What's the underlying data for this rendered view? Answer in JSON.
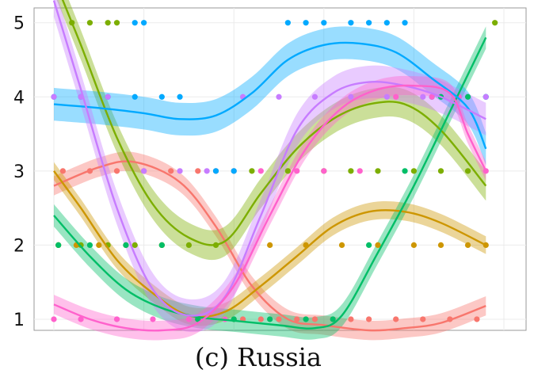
{
  "chart_data": {
    "type": "scatter",
    "title": "",
    "xlabel": "",
    "ylabel": "",
    "caption": "(c) Russia",
    "xlim": [
      0,
      100
    ],
    "ylim": [
      0.85,
      5.2
    ],
    "yticks": [
      1,
      2,
      3,
      4,
      5
    ],
    "grid": true,
    "legend": "none",
    "series": [
      {
        "color": "#F8766D",
        "points": [
          [
            2,
            3
          ],
          [
            8,
            3
          ],
          [
            14,
            3
          ],
          [
            20,
            3
          ],
          [
            26,
            3
          ],
          [
            32,
            3
          ],
          [
            36,
            3
          ],
          [
            40,
            3
          ],
          [
            42,
            1
          ],
          [
            46,
            1
          ],
          [
            50,
            1
          ],
          [
            54,
            1
          ],
          [
            58,
            1
          ],
          [
            62,
            1
          ],
          [
            66,
            1
          ],
          [
            70,
            1
          ],
          [
            76,
            1
          ],
          [
            82,
            1
          ],
          [
            88,
            1
          ],
          [
            94,
            1
          ]
        ],
        "smooth": [
          [
            0,
            2.8
          ],
          [
            10,
            3.05
          ],
          [
            18,
            3.12
          ],
          [
            28,
            2.85
          ],
          [
            36,
            2.25
          ],
          [
            44,
            1.45
          ],
          [
            52,
            1.0
          ],
          [
            60,
            0.92
          ],
          [
            70,
            0.85
          ],
          [
            78,
            0.88
          ],
          [
            86,
            0.95
          ],
          [
            96,
            1.18
          ]
        ],
        "band": 0.13
      },
      {
        "color": "#CD9600",
        "points": [
          [
            1,
            2
          ],
          [
            5,
            2
          ],
          [
            10,
            2
          ],
          [
            16,
            2
          ],
          [
            24,
            2
          ],
          [
            32,
            1
          ],
          [
            40,
            1
          ],
          [
            48,
            2
          ],
          [
            56,
            2
          ],
          [
            64,
            2
          ],
          [
            72,
            2
          ],
          [
            80,
            2
          ],
          [
            86,
            2
          ],
          [
            92,
            2
          ],
          [
            96,
            2
          ]
        ],
        "smooth": [
          [
            0,
            3.0
          ],
          [
            6,
            2.5
          ],
          [
            14,
            1.8
          ],
          [
            22,
            1.35
          ],
          [
            30,
            1.05
          ],
          [
            38,
            1.1
          ],
          [
            46,
            1.45
          ],
          [
            54,
            1.85
          ],
          [
            62,
            2.25
          ],
          [
            70,
            2.45
          ],
          [
            78,
            2.45
          ],
          [
            86,
            2.3
          ],
          [
            96,
            2.0
          ]
        ],
        "band": 0.12
      },
      {
        "color": "#7CAE00",
        "points": [
          [
            4,
            5
          ],
          [
            8,
            5
          ],
          [
            12,
            5
          ],
          [
            14,
            5
          ],
          [
            1,
            2
          ],
          [
            6,
            2
          ],
          [
            12,
            2
          ],
          [
            18,
            2
          ],
          [
            24,
            2
          ],
          [
            30,
            2
          ],
          [
            36,
            2
          ],
          [
            44,
            3
          ],
          [
            52,
            3
          ],
          [
            60,
            3
          ],
          [
            66,
            3
          ],
          [
            72,
            3
          ],
          [
            80,
            3
          ],
          [
            86,
            3
          ],
          [
            92,
            3
          ],
          [
            98,
            5
          ]
        ],
        "smooth": [
          [
            0,
            5.6
          ],
          [
            6,
            4.7
          ],
          [
            14,
            3.45
          ],
          [
            22,
            2.55
          ],
          [
            30,
            2.1
          ],
          [
            38,
            2.05
          ],
          [
            46,
            2.7
          ],
          [
            54,
            3.3
          ],
          [
            62,
            3.7
          ],
          [
            70,
            3.9
          ],
          [
            78,
            3.9
          ],
          [
            86,
            3.55
          ],
          [
            96,
            2.8
          ]
        ],
        "band": 0.2
      },
      {
        "color": "#00BE67",
        "points": [
          [
            1,
            2
          ],
          [
            8,
            2
          ],
          [
            16,
            2
          ],
          [
            24,
            2
          ],
          [
            32,
            1
          ],
          [
            40,
            1
          ],
          [
            48,
            1
          ],
          [
            56,
            1
          ],
          [
            62,
            1
          ],
          [
            70,
            2
          ],
          [
            78,
            3
          ],
          [
            86,
            4
          ],
          [
            92,
            4
          ],
          [
            96,
            4
          ]
        ],
        "smooth": [
          [
            0,
            2.4
          ],
          [
            8,
            1.85
          ],
          [
            16,
            1.4
          ],
          [
            24,
            1.15
          ],
          [
            32,
            1.03
          ],
          [
            40,
            0.98
          ],
          [
            50,
            0.92
          ],
          [
            58,
            0.88
          ],
          [
            64,
            1.05
          ],
          [
            72,
            1.9
          ],
          [
            80,
            2.8
          ],
          [
            88,
            3.8
          ],
          [
            96,
            4.8
          ]
        ],
        "band": 0.15
      },
      {
        "color": "#00A9FF",
        "points": [
          [
            0,
            4
          ],
          [
            6,
            4
          ],
          [
            12,
            4
          ],
          [
            18,
            4
          ],
          [
            24,
            4
          ],
          [
            28,
            4
          ],
          [
            20,
            5
          ],
          [
            18,
            5
          ],
          [
            52,
            5
          ],
          [
            56,
            5
          ],
          [
            60,
            5
          ],
          [
            66,
            5
          ],
          [
            70,
            5
          ],
          [
            74,
            5
          ],
          [
            78,
            5
          ],
          [
            84,
            4
          ],
          [
            90,
            4
          ],
          [
            96,
            4
          ],
          [
            36,
            3
          ],
          [
            40,
            3
          ]
        ],
        "smooth": [
          [
            0,
            3.9
          ],
          [
            10,
            3.85
          ],
          [
            20,
            3.78
          ],
          [
            28,
            3.7
          ],
          [
            36,
            3.75
          ],
          [
            44,
            4.05
          ],
          [
            52,
            4.5
          ],
          [
            60,
            4.7
          ],
          [
            68,
            4.72
          ],
          [
            76,
            4.6
          ],
          [
            84,
            4.25
          ],
          [
            92,
            3.85
          ],
          [
            96,
            3.3
          ]
        ],
        "band": 0.22
      },
      {
        "color": "#C77CFF",
        "points": [
          [
            0,
            4
          ],
          [
            6,
            4
          ],
          [
            12,
            4
          ],
          [
            20,
            3
          ],
          [
            28,
            3
          ],
          [
            34,
            3
          ],
          [
            42,
            4
          ],
          [
            50,
            4
          ],
          [
            58,
            4
          ],
          [
            66,
            4
          ],
          [
            74,
            4
          ],
          [
            82,
            4
          ],
          [
            90,
            4
          ],
          [
            96,
            4
          ]
        ],
        "smooth": [
          [
            0,
            5.3
          ],
          [
            6,
            4.1
          ],
          [
            14,
            2.5
          ],
          [
            22,
            1.4
          ],
          [
            30,
            1.05
          ],
          [
            38,
            1.3
          ],
          [
            46,
            2.4
          ],
          [
            54,
            3.55
          ],
          [
            62,
            4.05
          ],
          [
            70,
            4.2
          ],
          [
            78,
            4.15
          ],
          [
            86,
            4.0
          ],
          [
            96,
            3.7
          ]
        ],
        "band": 0.22
      },
      {
        "color": "#FF61CC",
        "points": [
          [
            0,
            1
          ],
          [
            6,
            1
          ],
          [
            14,
            1
          ],
          [
            22,
            1
          ],
          [
            30,
            1
          ],
          [
            38,
            1
          ],
          [
            46,
            3
          ],
          [
            54,
            3
          ],
          [
            60,
            3
          ],
          [
            68,
            3
          ],
          [
            76,
            4
          ],
          [
            84,
            4
          ],
          [
            90,
            4
          ],
          [
            96,
            3
          ]
        ],
        "smooth": [
          [
            0,
            1.2
          ],
          [
            8,
            1.0
          ],
          [
            16,
            0.88
          ],
          [
            24,
            0.85
          ],
          [
            32,
            0.95
          ],
          [
            40,
            1.45
          ],
          [
            48,
            2.4
          ],
          [
            56,
            3.3
          ],
          [
            64,
            3.85
          ],
          [
            72,
            4.1
          ],
          [
            80,
            4.15
          ],
          [
            88,
            4.05
          ],
          [
            92,
            3.5
          ],
          [
            96,
            3.0
          ]
        ],
        "band": 0.13
      }
    ]
  }
}
